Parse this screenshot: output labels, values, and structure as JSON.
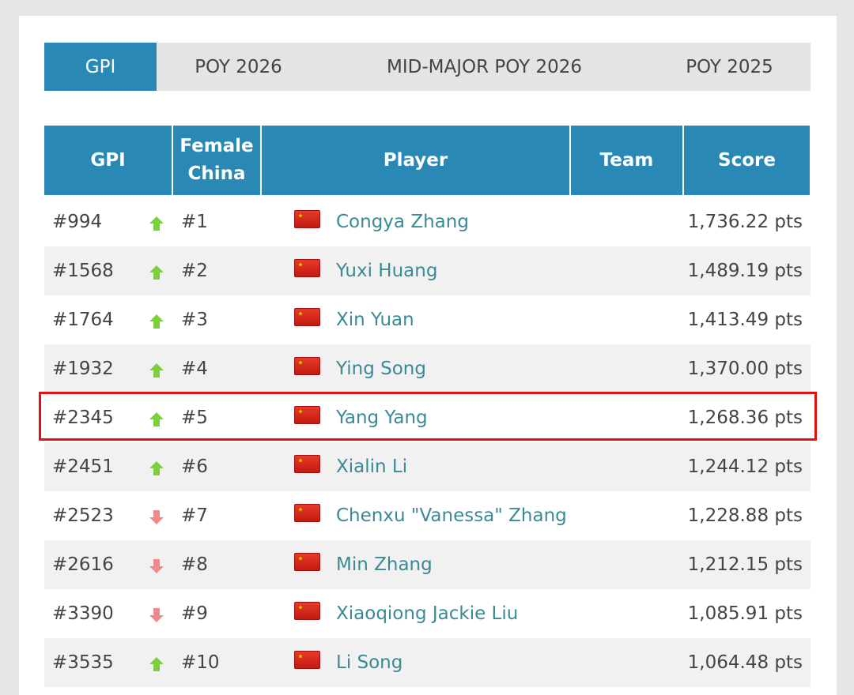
{
  "tabs": [
    {
      "label": "GPI",
      "active": true
    },
    {
      "label": "POY 2026"
    },
    {
      "label": "MID-MAJOR POY 2026"
    },
    {
      "label": "POY 2025"
    }
  ],
  "table": {
    "headers": [
      "GPI",
      "Female China",
      "Player",
      "Team",
      "Score"
    ],
    "rows": [
      {
        "gpi": "#994",
        "trend": "up",
        "rank": "#1",
        "flag": "china-flag",
        "player": "Congya Zhang",
        "team": "",
        "score": "1,736.22 pts"
      },
      {
        "gpi": "#1568",
        "trend": "up",
        "rank": "#2",
        "flag": "china-flag",
        "player": "Yuxi Huang",
        "team": "",
        "score": "1,489.19 pts"
      },
      {
        "gpi": "#1764",
        "trend": "up",
        "rank": "#3",
        "flag": "china-flag",
        "player": "Xin Yuan",
        "team": "",
        "score": "1,413.49 pts"
      },
      {
        "gpi": "#1932",
        "trend": "up",
        "rank": "#4",
        "flag": "china-flag",
        "player": "Ying Song",
        "team": "",
        "score": "1,370.00 pts"
      },
      {
        "gpi": "#2345",
        "trend": "up",
        "rank": "#5",
        "flag": "china-flag",
        "player": "Yang Yang",
        "team": "",
        "score": "1,268.36 pts",
        "highlighted": true
      },
      {
        "gpi": "#2451",
        "trend": "up",
        "rank": "#6",
        "flag": "china-flag",
        "player": "Xialin Li",
        "team": "",
        "score": "1,244.12 pts"
      },
      {
        "gpi": "#2523",
        "trend": "down",
        "rank": "#7",
        "flag": "china-flag",
        "player": "Chenxu \"Vanessa\" Zhang",
        "team": "",
        "score": "1,228.88 pts"
      },
      {
        "gpi": "#2616",
        "trend": "down",
        "rank": "#8",
        "flag": "china-flag",
        "player": "Min Zhang",
        "team": "",
        "score": "1,212.15 pts"
      },
      {
        "gpi": "#3390",
        "trend": "down",
        "rank": "#9",
        "flag": "china-flag",
        "player": "Xiaoqiong Jackie Liu",
        "team": "",
        "score": "1,085.91 pts"
      },
      {
        "gpi": "#3535",
        "trend": "up",
        "rank": "#10",
        "flag": "china-flag",
        "player": "Li Song",
        "team": "",
        "score": "1,064.48 pts"
      }
    ]
  },
  "colors": {
    "accent": "#2a89b4",
    "up": "#7ccf3c",
    "down": "#f08a8a",
    "link": "#3a8a96",
    "highlight": "#e01010"
  }
}
